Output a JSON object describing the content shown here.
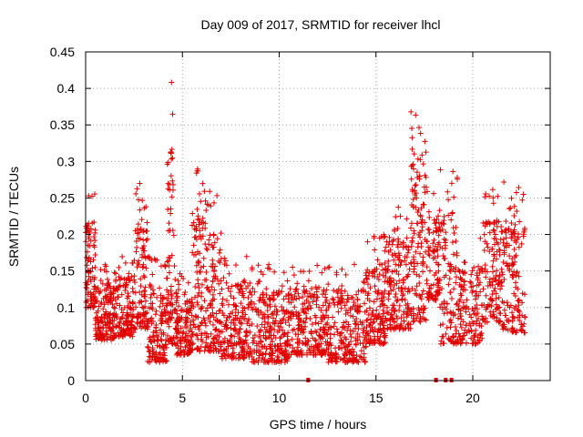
{
  "colors": {
    "series": "#e00000",
    "grid": "#a0a0a0",
    "axis": "#000000"
  },
  "chart_data": {
    "type": "scatter",
    "title": "Day 009 of 2017, SRMTID for receiver lhcl",
    "xlabel": "GPS time / hours",
    "ylabel": "SRMTID / TECUs",
    "xlim": [
      0,
      24
    ],
    "ylim": [
      0,
      0.45
    ],
    "grid": true,
    "x_ticks": [
      0,
      5,
      10,
      15,
      20
    ],
    "x_tick_labels": [
      "0",
      "5",
      "10",
      "15",
      "20"
    ],
    "y_ticks": [
      0,
      0.05,
      0.1,
      0.15,
      0.2,
      0.25,
      0.3,
      0.35,
      0.4,
      0.45
    ],
    "y_tick_labels": [
      "0",
      "0.05",
      "0.1",
      "0.15",
      "0.2",
      "0.25",
      "0.3",
      "0.35",
      "0.4",
      "0.45"
    ],
    "series": [
      {
        "name": "SRMTID",
        "marker": "plus",
        "points_note": "dense scatter; representative envelope per time segment",
        "segments": [
          {
            "x_start": 0.0,
            "x_end": 0.5,
            "y_min": 0.1,
            "y_max": 0.26,
            "count": 90
          },
          {
            "x_start": 0.5,
            "x_end": 1.5,
            "y_min": 0.055,
            "y_max": 0.16,
            "count": 160
          },
          {
            "x_start": 1.5,
            "x_end": 2.5,
            "y_min": 0.06,
            "y_max": 0.17,
            "count": 140
          },
          {
            "x_start": 2.5,
            "x_end": 3.2,
            "y_min": 0.07,
            "y_max": 0.27,
            "count": 110
          },
          {
            "x_start": 3.2,
            "x_end": 4.2,
            "y_min": 0.025,
            "y_max": 0.17,
            "count": 150
          },
          {
            "x_start": 4.2,
            "x_end": 4.6,
            "y_min": 0.05,
            "y_max": 0.41,
            "count": 80
          },
          {
            "x_start": 4.6,
            "x_end": 5.5,
            "y_min": 0.035,
            "y_max": 0.15,
            "count": 140
          },
          {
            "x_start": 5.5,
            "x_end": 6.2,
            "y_min": 0.04,
            "y_max": 0.3,
            "count": 110
          },
          {
            "x_start": 6.2,
            "x_end": 7.0,
            "y_min": 0.04,
            "y_max": 0.26,
            "count": 120
          },
          {
            "x_start": 7.0,
            "x_end": 8.5,
            "y_min": 0.03,
            "y_max": 0.17,
            "count": 190
          },
          {
            "x_start": 8.5,
            "x_end": 10.5,
            "y_min": 0.025,
            "y_max": 0.16,
            "count": 260
          },
          {
            "x_start": 10.5,
            "x_end": 12.5,
            "y_min": 0.035,
            "y_max": 0.16,
            "count": 240
          },
          {
            "x_start": 12.5,
            "x_end": 14.5,
            "y_min": 0.025,
            "y_max": 0.16,
            "count": 240
          },
          {
            "x_start": 14.5,
            "x_end": 15.5,
            "y_min": 0.05,
            "y_max": 0.2,
            "count": 150
          },
          {
            "x_start": 15.5,
            "x_end": 16.8,
            "y_min": 0.07,
            "y_max": 0.24,
            "count": 170
          },
          {
            "x_start": 16.8,
            "x_end": 17.6,
            "y_min": 0.08,
            "y_max": 0.37,
            "count": 130
          },
          {
            "x_start": 17.6,
            "x_end": 18.3,
            "y_min": 0.11,
            "y_max": 0.26,
            "count": 90
          },
          {
            "x_start": 18.3,
            "x_end": 19.2,
            "y_min": 0.05,
            "y_max": 0.29,
            "count": 110
          },
          {
            "x_start": 19.2,
            "x_end": 20.5,
            "y_min": 0.05,
            "y_max": 0.2,
            "count": 140
          },
          {
            "x_start": 20.5,
            "x_end": 21.5,
            "y_min": 0.08,
            "y_max": 0.27,
            "count": 130
          },
          {
            "x_start": 21.5,
            "x_end": 22.7,
            "y_min": 0.065,
            "y_max": 0.28,
            "count": 150
          }
        ],
        "zero_markers_x": [
          11.5,
          18.1,
          18.6,
          18.9
        ]
      }
    ]
  }
}
